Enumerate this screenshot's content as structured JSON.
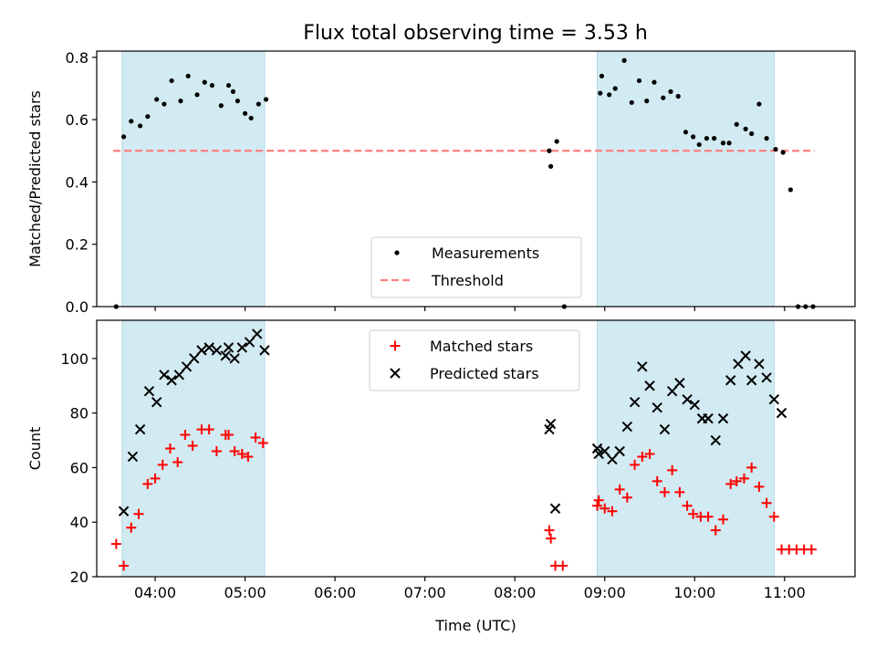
{
  "figure": {
    "title": "Flux total observing time = 3.53 h"
  },
  "chart_data": [
    {
      "type": "scatter",
      "panel": "top",
      "xlabel": "",
      "ylabel": "Matched/Predicted stars",
      "xlim": [
        "03:21",
        "11:47"
      ],
      "ylim": [
        0,
        0.82
      ],
      "yticks": [
        0.0,
        0.2,
        0.4,
        0.6,
        0.8
      ],
      "grid": false,
      "legend": "lower center",
      "shaded_intervals": [
        [
          "03:38",
          "05:13"
        ],
        [
          "08:55",
          "10:53"
        ]
      ],
      "shade_color": "#add8e6",
      "threshold": {
        "name": "Threshold",
        "value": 0.5,
        "x": [
          "03:32",
          "11:20"
        ],
        "color": "#ff7f7f"
      },
      "series": [
        {
          "name": "Measurements",
          "marker": "dot",
          "color": "#000000",
          "points": [
            [
              "03:34",
              0.0
            ],
            [
              "03:39",
              0.545
            ],
            [
              "03:44",
              0.595
            ],
            [
              "03:50",
              0.58
            ],
            [
              "03:55",
              0.61
            ],
            [
              "04:01",
              0.665
            ],
            [
              "04:06",
              0.65
            ],
            [
              "04:11",
              0.725
            ],
            [
              "04:17",
              0.66
            ],
            [
              "04:22",
              0.74
            ],
            [
              "04:28",
              0.68
            ],
            [
              "04:33",
              0.72
            ],
            [
              "04:38",
              0.71
            ],
            [
              "04:44",
              0.645
            ],
            [
              "04:49",
              0.71
            ],
            [
              "04:52",
              0.69
            ],
            [
              "04:55",
              0.66
            ],
            [
              "05:00",
              0.62
            ],
            [
              "05:04",
              0.605
            ],
            [
              "05:09",
              0.65
            ],
            [
              "05:14",
              0.665
            ],
            [
              "08:23",
              0.5
            ],
            [
              "08:24",
              0.45
            ],
            [
              "08:28",
              0.53
            ],
            [
              "08:33",
              0.0
            ],
            [
              "08:57",
              0.685
            ],
            [
              "08:58",
              0.74
            ],
            [
              "09:03",
              0.68
            ],
            [
              "09:07",
              0.7
            ],
            [
              "09:13",
              0.79
            ],
            [
              "09:18",
              0.655
            ],
            [
              "09:23",
              0.725
            ],
            [
              "09:28",
              0.66
            ],
            [
              "09:33",
              0.72
            ],
            [
              "09:39",
              0.67
            ],
            [
              "09:44",
              0.69
            ],
            [
              "09:49",
              0.675
            ],
            [
              "09:54",
              0.56
            ],
            [
              "09:59",
              0.545
            ],
            [
              "10:03",
              0.52
            ],
            [
              "10:08",
              0.54
            ],
            [
              "10:13",
              0.54
            ],
            [
              "10:19",
              0.525
            ],
            [
              "10:23",
              0.525
            ],
            [
              "10:28",
              0.585
            ],
            [
              "10:34",
              0.57
            ],
            [
              "10:38",
              0.555
            ],
            [
              "10:43",
              0.65
            ],
            [
              "10:48",
              0.54
            ],
            [
              "10:54",
              0.505
            ],
            [
              "10:59",
              0.495
            ],
            [
              "11:04",
              0.375
            ],
            [
              "11:09",
              0.0
            ],
            [
              "11:14",
              0.0
            ],
            [
              "11:19",
              0.0
            ]
          ]
        }
      ]
    },
    {
      "type": "scatter",
      "panel": "bottom",
      "xlabel": "Time (UTC)",
      "ylabel": "Count",
      "xlim": [
        "03:21",
        "11:47"
      ],
      "ylim": [
        20,
        114
      ],
      "yticks": [
        20,
        40,
        60,
        80,
        100
      ],
      "xticks": [
        "04:00",
        "05:00",
        "06:00",
        "07:00",
        "08:00",
        "09:00",
        "10:00",
        "11:00"
      ],
      "grid": false,
      "legend": "upper center",
      "shaded_intervals": [
        [
          "03:38",
          "05:13"
        ],
        [
          "08:55",
          "10:53"
        ]
      ],
      "shade_color": "#add8e6",
      "series": [
        {
          "name": "Matched stars",
          "marker": "plus",
          "color": "#ff0000",
          "points": [
            [
              "03:34",
              32
            ],
            [
              "03:39",
              24
            ],
            [
              "03:44",
              38
            ],
            [
              "03:49",
              43
            ],
            [
              "03:55",
              54
            ],
            [
              "04:00",
              56
            ],
            [
              "04:05",
              61
            ],
            [
              "04:10",
              67
            ],
            [
              "04:15",
              62
            ],
            [
              "04:20",
              72
            ],
            [
              "04:25",
              68
            ],
            [
              "04:31",
              74
            ],
            [
              "04:36",
              74
            ],
            [
              "04:41",
              66
            ],
            [
              "04:47",
              72
            ],
            [
              "04:49",
              72
            ],
            [
              "04:53",
              66
            ],
            [
              "04:58",
              65
            ],
            [
              "05:02",
              64
            ],
            [
              "05:07",
              71
            ],
            [
              "05:12",
              69
            ],
            [
              "08:23",
              37
            ],
            [
              "08:24",
              34
            ],
            [
              "08:27",
              24
            ],
            [
              "08:32",
              24
            ],
            [
              "08:55",
              46
            ],
            [
              "08:56",
              48
            ],
            [
              "09:00",
              45
            ],
            [
              "09:05",
              44
            ],
            [
              "09:10",
              52
            ],
            [
              "09:15",
              49
            ],
            [
              "09:20",
              61
            ],
            [
              "09:25",
              64
            ],
            [
              "09:30",
              65
            ],
            [
              "09:35",
              55
            ],
            [
              "09:40",
              51
            ],
            [
              "09:45",
              59
            ],
            [
              "09:50",
              51
            ],
            [
              "09:55",
              46
            ],
            [
              "09:59",
              43
            ],
            [
              "10:04",
              42
            ],
            [
              "10:09",
              42
            ],
            [
              "10:14",
              37
            ],
            [
              "10:19",
              41
            ],
            [
              "10:24",
              54
            ],
            [
              "10:28",
              55
            ],
            [
              "10:33",
              56
            ],
            [
              "10:38",
              60
            ],
            [
              "10:43",
              53
            ],
            [
              "10:48",
              47
            ],
            [
              "10:53",
              42
            ],
            [
              "10:58",
              30
            ],
            [
              "11:03",
              30
            ],
            [
              "11:08",
              30
            ],
            [
              "11:13",
              30
            ],
            [
              "11:18",
              30
            ]
          ]
        },
        {
          "name": "Predicted stars",
          "marker": "x",
          "color": "#000000",
          "points": [
            [
              "03:39",
              44
            ],
            [
              "03:45",
              64
            ],
            [
              "03:50",
              74
            ],
            [
              "03:56",
              88
            ],
            [
              "04:01",
              84
            ],
            [
              "04:06",
              94
            ],
            [
              "04:11",
              92
            ],
            [
              "04:16",
              94
            ],
            [
              "04:21",
              97
            ],
            [
              "04:26",
              100
            ],
            [
              "04:31",
              103
            ],
            [
              "04:36",
              104
            ],
            [
              "04:41",
              103
            ],
            [
              "04:47",
              101
            ],
            [
              "04:49",
              104
            ],
            [
              "04:53",
              100
            ],
            [
              "04:58",
              104
            ],
            [
              "05:03",
              106
            ],
            [
              "05:08",
              109
            ],
            [
              "05:13",
              103
            ],
            [
              "08:23",
              74
            ],
            [
              "08:24",
              76
            ],
            [
              "08:27",
              45
            ],
            [
              "08:55",
              67
            ],
            [
              "08:56",
              65
            ],
            [
              "09:00",
              66
            ],
            [
              "09:05",
              63
            ],
            [
              "09:10",
              66
            ],
            [
              "09:15",
              75
            ],
            [
              "09:20",
              84
            ],
            [
              "09:25",
              97
            ],
            [
              "09:30",
              90
            ],
            [
              "09:35",
              82
            ],
            [
              "09:40",
              74
            ],
            [
              "09:45",
              88
            ],
            [
              "09:50",
              91
            ],
            [
              "09:55",
              85
            ],
            [
              "10:00",
              83
            ],
            [
              "10:05",
              78
            ],
            [
              "10:09",
              78
            ],
            [
              "10:14",
              70
            ],
            [
              "10:19",
              78
            ],
            [
              "10:24",
              92
            ],
            [
              "10:29",
              98
            ],
            [
              "10:34",
              101
            ],
            [
              "10:38",
              92
            ],
            [
              "10:43",
              98
            ],
            [
              "10:48",
              93
            ],
            [
              "10:53",
              85
            ],
            [
              "10:58",
              80
            ]
          ]
        }
      ]
    }
  ]
}
